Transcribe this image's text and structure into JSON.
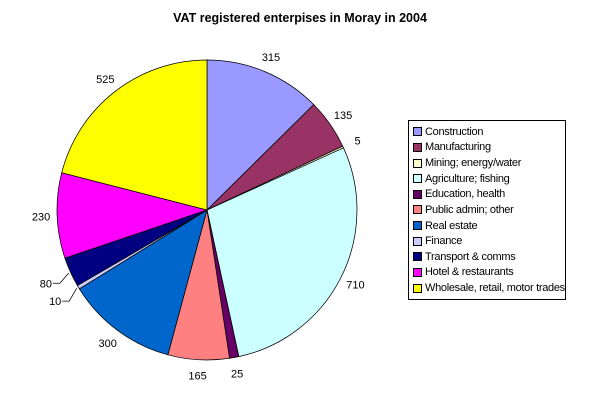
{
  "title": "VAT registered enterpises in Moray in 2004",
  "chart_data": {
    "type": "pie",
    "title": "VAT registered enterpises in Moray in 2004",
    "start_angle_deg": 0,
    "direction": "clockwise",
    "legend_position": "right",
    "data_labels": "value-outside-end",
    "background_color": "#ffffff",
    "slices": [
      {
        "label": "Construction",
        "value": 315,
        "color": "#9999FF"
      },
      {
        "label": "Manufacturing",
        "value": 135,
        "color": "#993366"
      },
      {
        "label": "Mining; energy/water",
        "value": 5,
        "color": "#FFFFCC"
      },
      {
        "label": "Agriculture; fishing",
        "value": 710,
        "color": "#CCFFFF"
      },
      {
        "label": "Education, health",
        "value": 25,
        "color": "#660066"
      },
      {
        "label": "Public admin; other",
        "value": 165,
        "color": "#FF8080"
      },
      {
        "label": "Real estate",
        "value": 300,
        "color": "#0066CC"
      },
      {
        "label": "Finance",
        "value": 10,
        "color": "#CCCCFF",
        "leader_line": true
      },
      {
        "label": "Transport & comms",
        "value": 80,
        "color": "#000080",
        "leader_line": true
      },
      {
        "label": "Hotel & restaurants",
        "value": 230,
        "color": "#FF00FF"
      },
      {
        "label": "Wholesale, retail, motor trades",
        "value": 525,
        "color": "#FFFF00"
      }
    ]
  }
}
